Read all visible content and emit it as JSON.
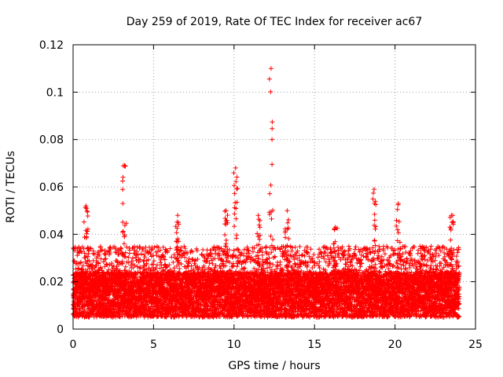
{
  "chart_data": {
    "type": "scatter",
    "title": "Day 259 of 2019, Rate Of TEC Index for receiver ac67",
    "xlabel": "GPS time / hours",
    "ylabel": "ROTI / TECUs",
    "xlim": [
      0,
      25
    ],
    "ylim": [
      0,
      0.12
    ],
    "xticks": [
      0,
      5,
      10,
      15,
      20,
      25
    ],
    "xtick_labels": [
      "0",
      "5",
      "10",
      "15",
      "20",
      "25"
    ],
    "yticks": [
      0,
      0.02,
      0.04,
      0.06,
      0.08,
      0.1,
      0.12
    ],
    "ytick_labels": [
      "0",
      "0.02",
      "0.04",
      "0.06",
      "0.08",
      "0.1",
      "0.12"
    ],
    "grid": true,
    "marker": "plus",
    "color": "#ff0000",
    "series": [
      {
        "name": "ROTI",
        "x_range": [
          0,
          24
        ],
        "sample_interval_hours": 0.01,
        "baseline": {
          "typical_min": 0.005,
          "typical_median": 0.015,
          "typical_upper": 0.035
        },
        "peaks": [
          {
            "x": 0.8,
            "y": 0.052
          },
          {
            "x": 3.2,
            "y": 0.069
          },
          {
            "x": 6.5,
            "y": 0.048
          },
          {
            "x": 9.5,
            "y": 0.05
          },
          {
            "x": 10.1,
            "y": 0.068
          },
          {
            "x": 11.5,
            "y": 0.048
          },
          {
            "x": 12.3,
            "y": 0.11
          },
          {
            "x": 13.3,
            "y": 0.05
          },
          {
            "x": 16.3,
            "y": 0.043
          },
          {
            "x": 18.7,
            "y": 0.059
          },
          {
            "x": 20.2,
            "y": 0.053
          },
          {
            "x": 23.5,
            "y": 0.048
          }
        ]
      }
    ]
  }
}
